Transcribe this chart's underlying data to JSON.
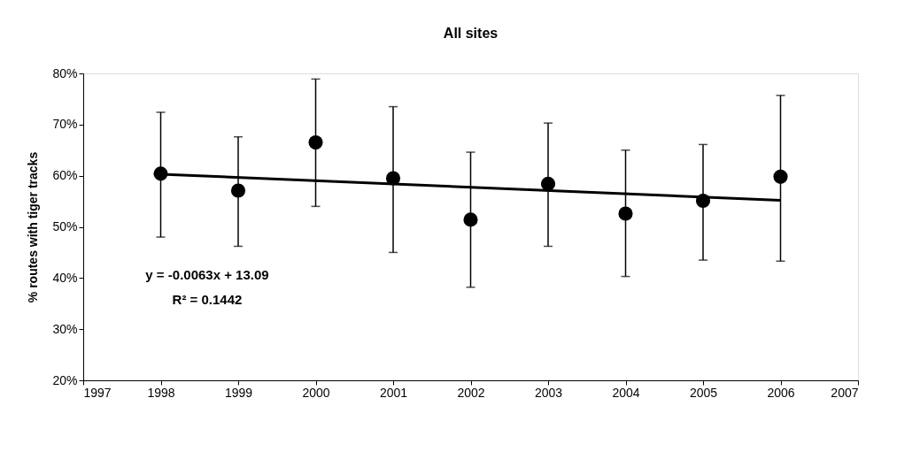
{
  "chart_data": {
    "type": "scatter",
    "title": "All sites",
    "ylabel": "% routes with tiger tracks",
    "x": [
      1998,
      1999,
      2000,
      2001,
      2002,
      2003,
      2004,
      2005,
      2006
    ],
    "series": [
      {
        "color": "#000000",
        "marker": "circle",
        "values": [
          60.4,
          57.1,
          66.5,
          59.5,
          51.4,
          58.4,
          52.6,
          55.1,
          59.8
        ],
        "errors": [
          [
            48.0,
            72.4
          ],
          [
            46.2,
            67.6
          ],
          [
            54.0,
            78.9
          ],
          [
            45.0,
            73.5
          ],
          [
            38.2,
            64.6
          ],
          [
            46.2,
            70.3
          ],
          [
            40.3,
            65.0
          ],
          [
            43.5,
            66.1
          ],
          [
            43.3,
            75.7
          ]
        ]
      },
      {
        "type": "line",
        "color": "#000000",
        "x": [
          1998,
          2006
        ],
        "values": [
          60.3,
          55.2
        ]
      }
    ],
    "xlim": [
      1997,
      2007
    ],
    "xticks": [
      1997,
      1998,
      1999,
      2000,
      2001,
      2002,
      2003,
      2004,
      2005,
      2006,
      2007
    ],
    "ylim": [
      20,
      80
    ],
    "yticks": [
      {
        "value": 20,
        "label": "20%"
      },
      {
        "value": 30,
        "label": "30%"
      },
      {
        "value": 40,
        "label": "40%"
      },
      {
        "value": 50,
        "label": "50%"
      },
      {
        "value": 60,
        "label": "60%"
      },
      {
        "value": 70,
        "label": "70%"
      },
      {
        "value": 80,
        "label": "80%"
      }
    ],
    "annotations": [
      "y = -0.0063x + 13.09",
      "R² = 0.1442"
    ],
    "grid": false
  }
}
